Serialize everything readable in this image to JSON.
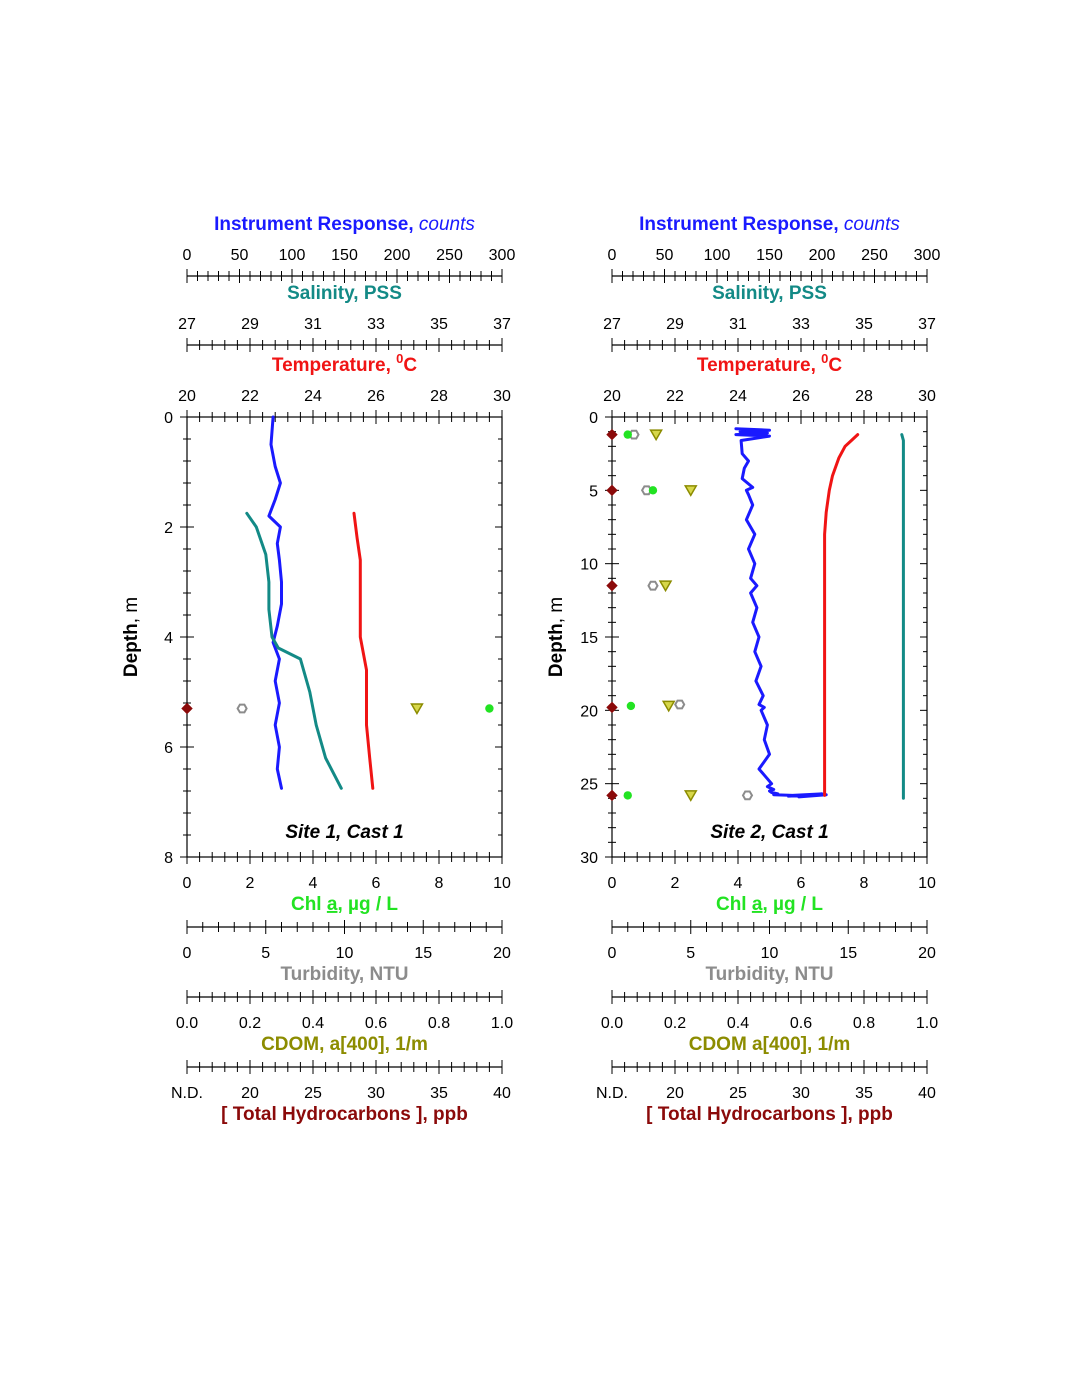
{
  "chart_data": [
    {
      "type": "line",
      "panel_label": "Site 1, Cast 1",
      "y_axis": {
        "name": "Depth",
        "unit": ", m",
        "range": [
          0,
          8
        ],
        "ticks": [
          0,
          2,
          4,
          6,
          8
        ],
        "inverted": true
      },
      "top_axes": [
        {
          "key": "ir",
          "name": "Instrument Response",
          "unit": "counts",
          "range": [
            0,
            300
          ],
          "ticks": [
            0,
            50,
            100,
            150,
            200,
            250,
            300
          ],
          "color": "#1a1aff"
        },
        {
          "key": "sal",
          "name": "Salinity",
          "unit": "PSS",
          "range": [
            27,
            37
          ],
          "ticks": [
            27,
            29,
            31,
            33,
            35,
            37
          ],
          "color": "#138a86"
        },
        {
          "key": "temp",
          "name": "Temperature",
          "unit": "C",
          "range": [
            20,
            30
          ],
          "ticks": [
            20,
            22,
            24,
            26,
            28,
            30
          ],
          "color": "#f01414"
        }
      ],
      "bottom_axes": [
        {
          "key": "chl",
          "name": "Chl a",
          "unit": "µg / L",
          "range": [
            0,
            10
          ],
          "ticks": [
            "0",
            "2",
            "4",
            "6",
            "8",
            "10"
          ],
          "color": "#22e322"
        },
        {
          "key": "turb",
          "name": "Turbidity",
          "unit": "NTU",
          "range": [
            0,
            20
          ],
          "ticks": [
            "0",
            "5",
            "10",
            "15",
            "20"
          ],
          "color": "#8c8c8c"
        },
        {
          "key": "cdom",
          "name": "CDOM, a[400]",
          "unit": "1/m",
          "range": [
            0,
            1
          ],
          "ticks": [
            "0.0",
            "0.2",
            "0.4",
            "0.6",
            "0.8",
            "1.0"
          ],
          "color": "#8c8c00"
        },
        {
          "key": "thc",
          "name": "[ Total Hydrocarbons ]",
          "unit": "ppb",
          "range": [
            15,
            40
          ],
          "ticks": [
            "N.D.",
            "20",
            "25",
            "30",
            "35",
            "40"
          ],
          "color": "#8b0a0a"
        }
      ],
      "series": [
        {
          "axis": "ir",
          "x": [
            82,
            80,
            84,
            89,
            84,
            78,
            89,
            86,
            88,
            90,
            90,
            86,
            82,
            88,
            84,
            88,
            84,
            88,
            86,
            90
          ],
          "y": [
            0.0,
            0.5,
            0.9,
            1.2,
            1.5,
            1.8,
            2.0,
            2.3,
            2.6,
            3.0,
            3.4,
            3.8,
            4.1,
            4.4,
            4.8,
            5.2,
            5.6,
            6.0,
            6.4,
            6.75
          ]
        },
        {
          "axis": "sal",
          "x": [
            28.9,
            29.2,
            29.5,
            29.6,
            29.6,
            29.7,
            29.9,
            30.6,
            30.9,
            31.1,
            31.4,
            31.9
          ],
          "y": [
            1.75,
            2.0,
            2.5,
            3.0,
            3.5,
            4.0,
            4.2,
            4.4,
            5.0,
            5.6,
            6.2,
            6.75
          ]
        },
        {
          "axis": "temp",
          "x": [
            25.3,
            25.4,
            25.5,
            25.5,
            25.5,
            25.5,
            25.6,
            25.7,
            25.7,
            25.7,
            25.8,
            25.9
          ],
          "y": [
            1.75,
            2.2,
            2.6,
            3.0,
            3.5,
            4.0,
            4.3,
            4.6,
            5.0,
            5.6,
            6.2,
            6.75
          ]
        }
      ],
      "discrete_samples": [
        {
          "axis": "thc",
          "marker": "diamond",
          "points": [
            {
              "x": 15,
              "y": 5.3
            }
          ]
        },
        {
          "axis": "turb",
          "marker": "hexagon-open",
          "points": [
            {
              "x": 3.5,
              "y": 5.3
            }
          ]
        },
        {
          "axis": "cdom",
          "marker": "triangle-down",
          "points": [
            {
              "x": 0.73,
              "y": 5.3
            }
          ]
        },
        {
          "axis": "chl",
          "marker": "circle",
          "points": [
            {
              "x": 9.6,
              "y": 5.3
            }
          ]
        }
      ]
    },
    {
      "type": "line",
      "panel_label": "Site 2, Cast 1",
      "y_axis": {
        "name": "Depth",
        "unit": ", m",
        "range": [
          0,
          30
        ],
        "ticks": [
          0,
          5,
          10,
          15,
          20,
          25,
          30
        ],
        "inverted": true
      },
      "top_axes": [
        {
          "key": "ir",
          "name": "Instrument Response",
          "unit": "counts",
          "range": [
            0,
            300
          ],
          "ticks": [
            0,
            50,
            100,
            150,
            200,
            250,
            300
          ],
          "color": "#1a1aff"
        },
        {
          "key": "sal",
          "name": "Salinity",
          "unit": "PSS",
          "range": [
            27,
            37
          ],
          "ticks": [
            27,
            29,
            31,
            33,
            35,
            37
          ],
          "color": "#138a86"
        },
        {
          "key": "temp",
          "name": "Temperature",
          "unit": "C",
          "range": [
            20,
            30
          ],
          "ticks": [
            20,
            22,
            24,
            26,
            28,
            30
          ],
          "color": "#f01414"
        }
      ],
      "bottom_axes": [
        {
          "key": "chl",
          "name": "Chl a",
          "unit": "µg / L",
          "range": [
            0,
            10
          ],
          "ticks": [
            "0",
            "2",
            "4",
            "6",
            "8",
            "10"
          ],
          "color": "#22e322"
        },
        {
          "key": "turb",
          "name": "Turbidity",
          "unit": "NTU",
          "range": [
            0,
            20
          ],
          "ticks": [
            "0",
            "5",
            "10",
            "15",
            "20"
          ],
          "color": "#8c8c8c"
        },
        {
          "key": "cdom",
          "name": "CDOM a[400]",
          "unit": "1/m",
          "range": [
            0,
            1
          ],
          "ticks": [
            "0.0",
            "0.2",
            "0.4",
            "0.6",
            "0.8",
            "1.0"
          ],
          "color": "#8c8c00"
        },
        {
          "key": "thc",
          "name": "[ Total Hydrocarbons ]",
          "unit": "ppb",
          "range": [
            15,
            40
          ],
          "ticks": [
            "N.D.",
            "20",
            "25",
            "30",
            "35",
            "40"
          ],
          "color": "#8b0a0a"
        }
      ],
      "series": [
        {
          "axis": "ir",
          "x": [
            118,
            150,
            122,
            148,
            118,
            150,
            123,
            124,
            130,
            126,
            124,
            134,
            128,
            130,
            134,
            128,
            136,
            130,
            136,
            132,
            138,
            132,
            138,
            134,
            140,
            136,
            142,
            137,
            144,
            140,
            145,
            142,
            148,
            145,
            150,
            140,
            146,
            152,
            148,
            154,
            150,
            152,
            158,
            154,
            172,
            200,
            168,
            204,
            178
          ],
          "y": [
            0.8,
            0.9,
            1.0,
            1.1,
            1.2,
            1.3,
            1.6,
            2.5,
            3.0,
            3.5,
            4.2,
            4.8,
            5.0,
            5.3,
            6.0,
            7.0,
            8.0,
            9.0,
            10.0,
            11.0,
            11.5,
            12.0,
            13.0,
            14.0,
            15.0,
            16.0,
            17.0,
            18.0,
            19.0,
            19.6,
            19.8,
            20.0,
            21.0,
            22.0,
            23.0,
            24.0,
            24.5,
            25.0,
            25.2,
            25.4,
            25.5,
            25.6,
            25.7,
            25.75,
            25.8,
            25.7,
            25.85,
            25.75,
            25.9
          ]
        },
        {
          "axis": "sal",
          "x": [
            36.2,
            36.25,
            36.25,
            36.25,
            36.25,
            36.25,
            36.25
          ],
          "y": [
            1.2,
            1.6,
            3.0,
            8.0,
            14.0,
            20.0,
            26.0
          ]
        },
        {
          "axis": "temp",
          "x": [
            27.8,
            27.6,
            27.4,
            27.2,
            27.0,
            26.9,
            26.8,
            26.75,
            26.75,
            26.75,
            26.75,
            26.75
          ],
          "y": [
            1.2,
            1.6,
            2.0,
            2.8,
            4.0,
            5.0,
            6.5,
            8.0,
            11.0,
            15.0,
            20.0,
            25.8
          ]
        }
      ],
      "discrete_samples": [
        {
          "axis": "thc",
          "marker": "diamond",
          "points": [
            {
              "x": 15,
              "y": 1.2
            },
            {
              "x": 15,
              "y": 5.0
            },
            {
              "x": 15,
              "y": 11.5
            },
            {
              "x": 15,
              "y": 19.8
            },
            {
              "x": 15,
              "y": 25.8
            }
          ]
        },
        {
          "axis": "turb",
          "marker": "hexagon-open",
          "points": [
            {
              "x": 1.4,
              "y": 1.2
            },
            {
              "x": 2.2,
              "y": 5.0
            },
            {
              "x": 2.6,
              "y": 11.5
            },
            {
              "x": 4.3,
              "y": 19.6
            },
            {
              "x": 8.6,
              "y": 25.8
            }
          ]
        },
        {
          "axis": "cdom",
          "marker": "triangle-down",
          "points": [
            {
              "x": 0.14,
              "y": 1.2
            },
            {
              "x": 0.25,
              "y": 5.0
            },
            {
              "x": 0.17,
              "y": 11.5
            },
            {
              "x": 0.18,
              "y": 19.7
            },
            {
              "x": 0.25,
              "y": 25.8
            }
          ]
        },
        {
          "axis": "chl",
          "marker": "circle",
          "points": [
            {
              "x": 0.5,
              "y": 1.2
            },
            {
              "x": 1.3,
              "y": 5.0
            },
            {
              "x": 0.6,
              "y": 19.7
            },
            {
              "x": 0.5,
              "y": 25.8
            }
          ]
        }
      ]
    }
  ]
}
